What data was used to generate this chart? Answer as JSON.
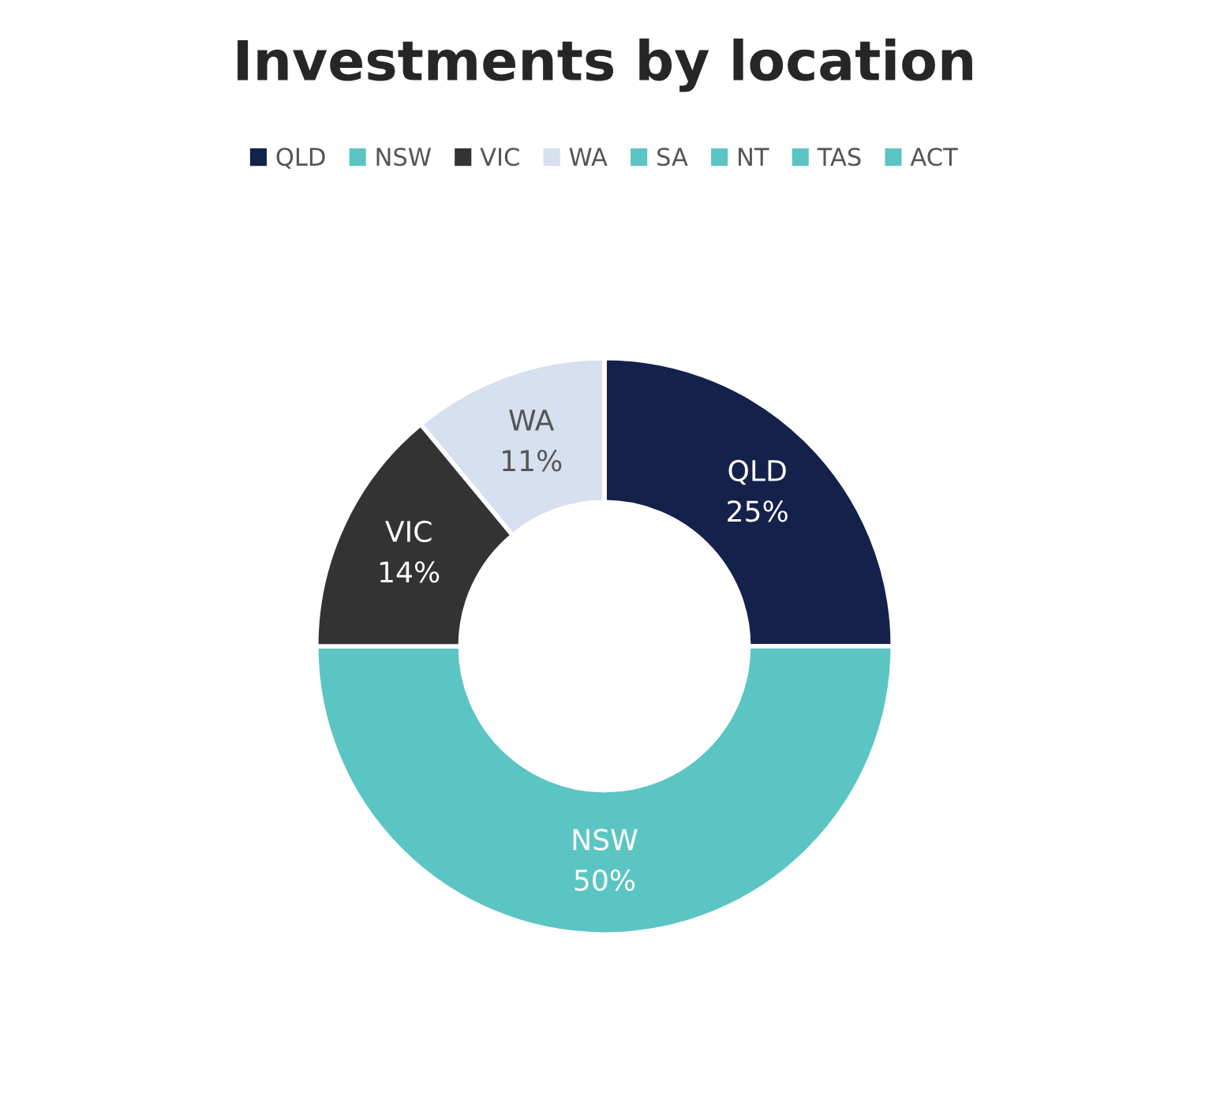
{
  "chart_data": {
    "type": "donut",
    "title": "Investments by location",
    "categories": [
      "QLD",
      "NSW",
      "VIC",
      "WA",
      "SA",
      "NT",
      "TAS",
      "ACT"
    ],
    "values": [
      25,
      50,
      14,
      11,
      0,
      0,
      0,
      0
    ],
    "colors": [
      "#14214b",
      "#5bc5c3",
      "#333333",
      "#d6e0ee",
      "#5bc5c3",
      "#5bc5c3",
      "#5bc5c3",
      "#5bc5c3"
    ],
    "value_labels": [
      "25%",
      "50%",
      "14%",
      "11%",
      null,
      null,
      null,
      null
    ],
    "legend": "top"
  }
}
